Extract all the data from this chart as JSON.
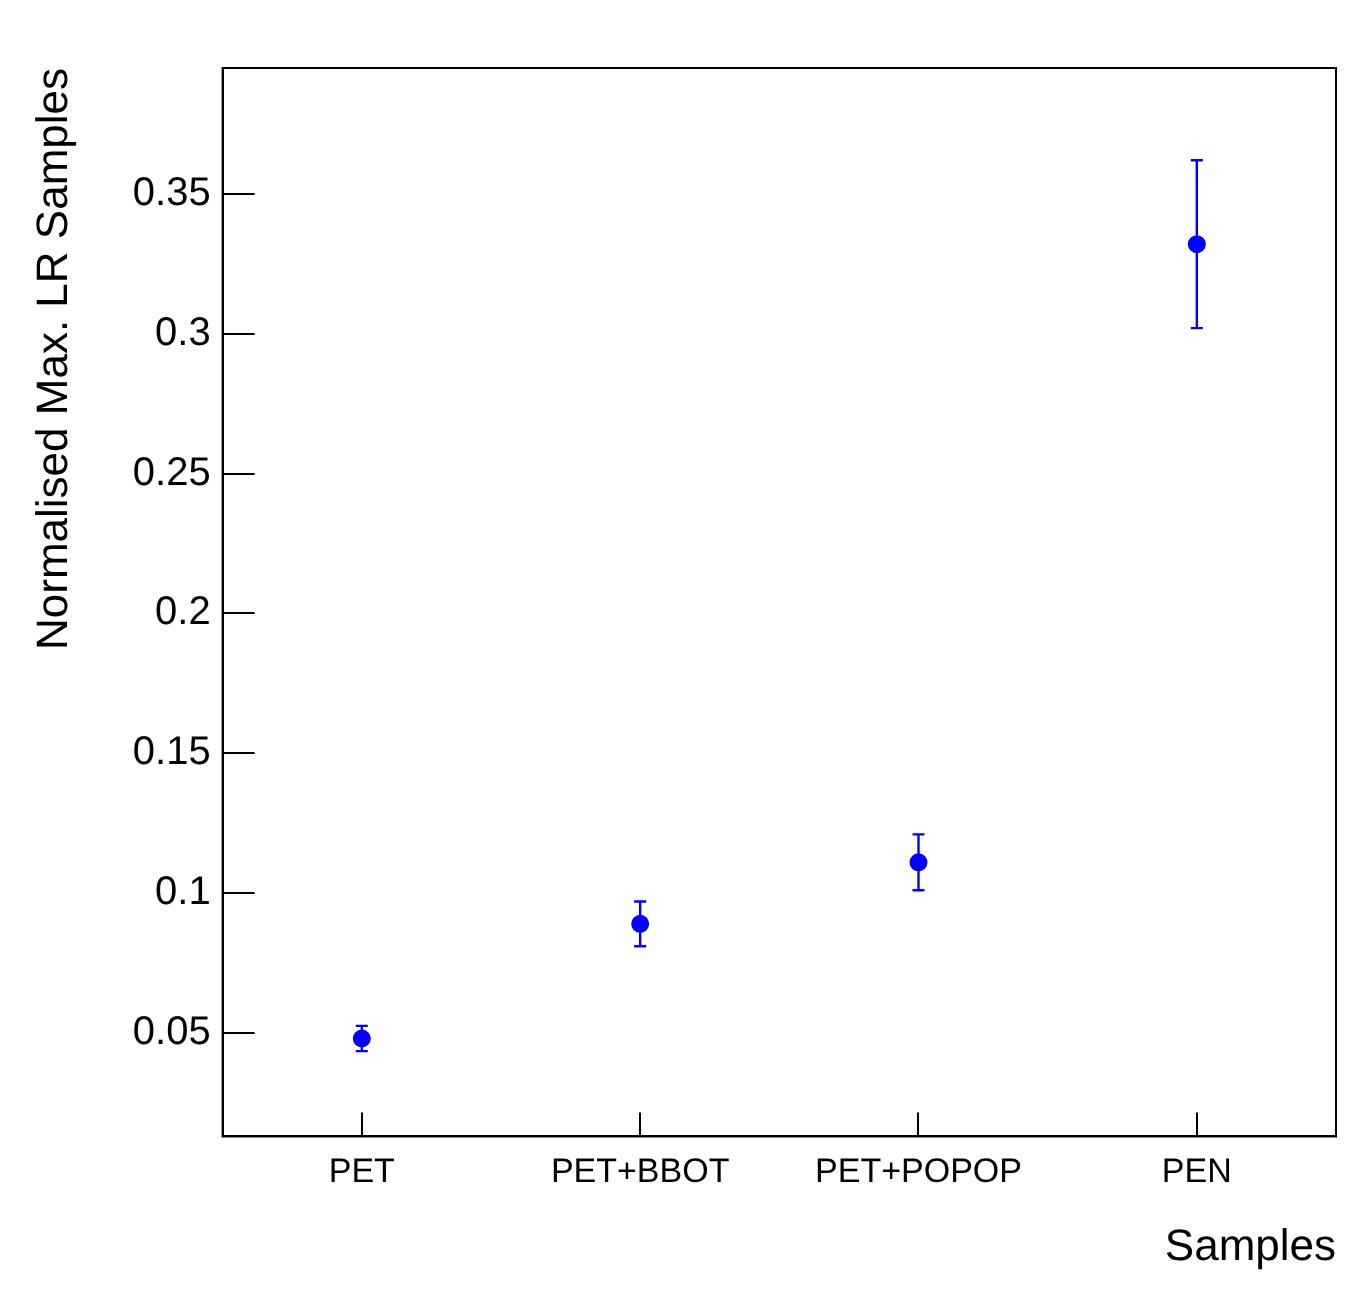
{
  "chart_data": {
    "type": "scatter",
    "ylabel": "Normalised Max. LR Samples",
    "xlabel": "Samples",
    "categories": [
      "PET",
      "PET+BBOT",
      "PET+POPOP",
      "PEN"
    ],
    "values": [
      0.048,
      0.089,
      0.111,
      0.332
    ],
    "errors": [
      0.0045,
      0.008,
      0.01,
      0.03
    ],
    "color": "#0000ff",
    "marker": "circle",
    "ylim": [
      0.013,
      0.395
    ],
    "yticks": [
      0.05,
      0.1,
      0.15,
      0.2,
      0.25,
      0.3,
      0.35
    ],
    "grid": false,
    "legend": false
  }
}
